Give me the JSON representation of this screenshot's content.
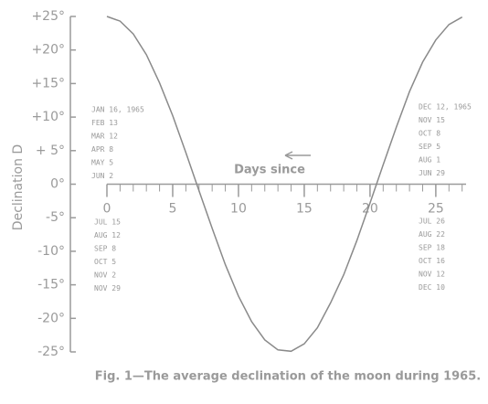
{
  "chart_data": {
    "type": "line",
    "y_axis_label": "Declination  D",
    "x_axis_label": "Days since",
    "caption": "Fig. 1—The average declination of the moon during 1965.",
    "x": [
      0,
      1,
      2,
      3,
      4,
      5,
      6,
      7,
      8,
      9,
      10,
      11,
      12,
      13,
      14,
      15,
      16,
      17,
      18,
      19,
      20,
      21,
      22,
      23,
      24,
      25,
      26,
      27
    ],
    "values": [
      25,
      24.3,
      22.4,
      19.3,
      15.1,
      10.2,
      4.7,
      -1.0,
      -6.6,
      -12.0,
      -16.7,
      -20.5,
      -23.2,
      -24.7,
      -24.9,
      -23.8,
      -21.4,
      -17.7,
      -13.5,
      -8.4,
      -2.8,
      2.9,
      8.5,
      13.8,
      18.2,
      21.5,
      23.8,
      24.9
    ],
    "color": "#8a8a8a",
    "xlim": [
      0,
      27.3
    ],
    "xticks": [
      0,
      5,
      10,
      15,
      20,
      25
    ],
    "ylim": [
      -25,
      25
    ],
    "yticks": [
      {
        "value": 25,
        "label": "+25°"
      },
      {
        "value": 20,
        "label": "+20°"
      },
      {
        "value": 15,
        "label": "+15°"
      },
      {
        "value": 10,
        "label": "+10°"
      },
      {
        "value": 5,
        "label": "+ 5°"
      },
      {
        "value": 0,
        "label": "0°"
      },
      {
        "value": -5,
        "label": "-5°"
      },
      {
        "value": -10,
        "label": "-10°"
      },
      {
        "value": -15,
        "label": "-15°"
      },
      {
        "value": -20,
        "label": "-20°"
      },
      {
        "value": -25,
        "label": "-25°"
      }
    ],
    "date_labels": {
      "upper_left": [
        "JAN 16, 1965",
        "FEB 13",
        "MAR 12",
        "APR 8",
        "MAY 5",
        "JUN 2"
      ],
      "lower_left": [
        "JUL 15",
        "AUG 12",
        "SEP 8",
        "OCT 5",
        "NOV 2",
        "NOV 29"
      ],
      "upper_right": [
        "DEC 12, 1965",
        "NOV 15",
        "OCT 8",
        "SEP 5",
        "AUG 1",
        "JUN 29"
      ],
      "lower_right": [
        "JUL 26",
        "AUG 22",
        "SEP 18",
        "OCT 16",
        "NOV 12",
        "DEC 10"
      ]
    }
  }
}
